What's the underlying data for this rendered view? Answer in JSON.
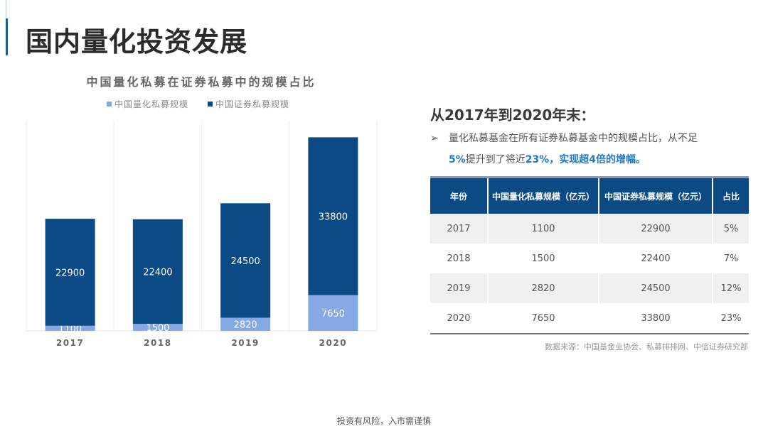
{
  "page_title": "国内量化投资发展",
  "chart_data": {
    "type": "bar",
    "stacked": true,
    "title": "中国量化私募在证券私募中的规模占比",
    "categories": [
      "2017",
      "2018",
      "2019",
      "2020"
    ],
    "series": [
      {
        "name": "中国量化私募规模",
        "values": [
          1100,
          1500,
          2820,
          7650
        ],
        "color": "#84a9e4"
      },
      {
        "name": "中国证券私募规模",
        "values": [
          22900,
          22400,
          24500,
          33800
        ],
        "color": "#0b4a85"
      }
    ],
    "ylim": [
      0,
      45000
    ],
    "legend": "top",
    "grid": "vertical"
  },
  "summary": {
    "heading": "从2017年到2020年末：",
    "bullet_arrow": "➢",
    "text_1": "量化私募基金在所有证券私募基金中的规模占比，从不足",
    "hl_1": "5%",
    "text_2": "提升到了将近",
    "hl_2": "23%，实现超4倍的增幅。"
  },
  "table": {
    "headers": [
      "年份",
      "中国量化私募规模（亿元）",
      "中国证券私募规模（亿元）",
      "占比"
    ],
    "rows": [
      [
        "2017",
        "1100",
        "22900",
        "5%"
      ],
      [
        "2018",
        "1500",
        "22400",
        "7%"
      ],
      [
        "2019",
        "2820",
        "24500",
        "12%"
      ],
      [
        "2020",
        "7650",
        "33800",
        "23%"
      ]
    ]
  },
  "source": "数据来源：中国基金业协会、私募排排网、中信证券研究部",
  "footer": "投资有风险，入市需谨慎"
}
